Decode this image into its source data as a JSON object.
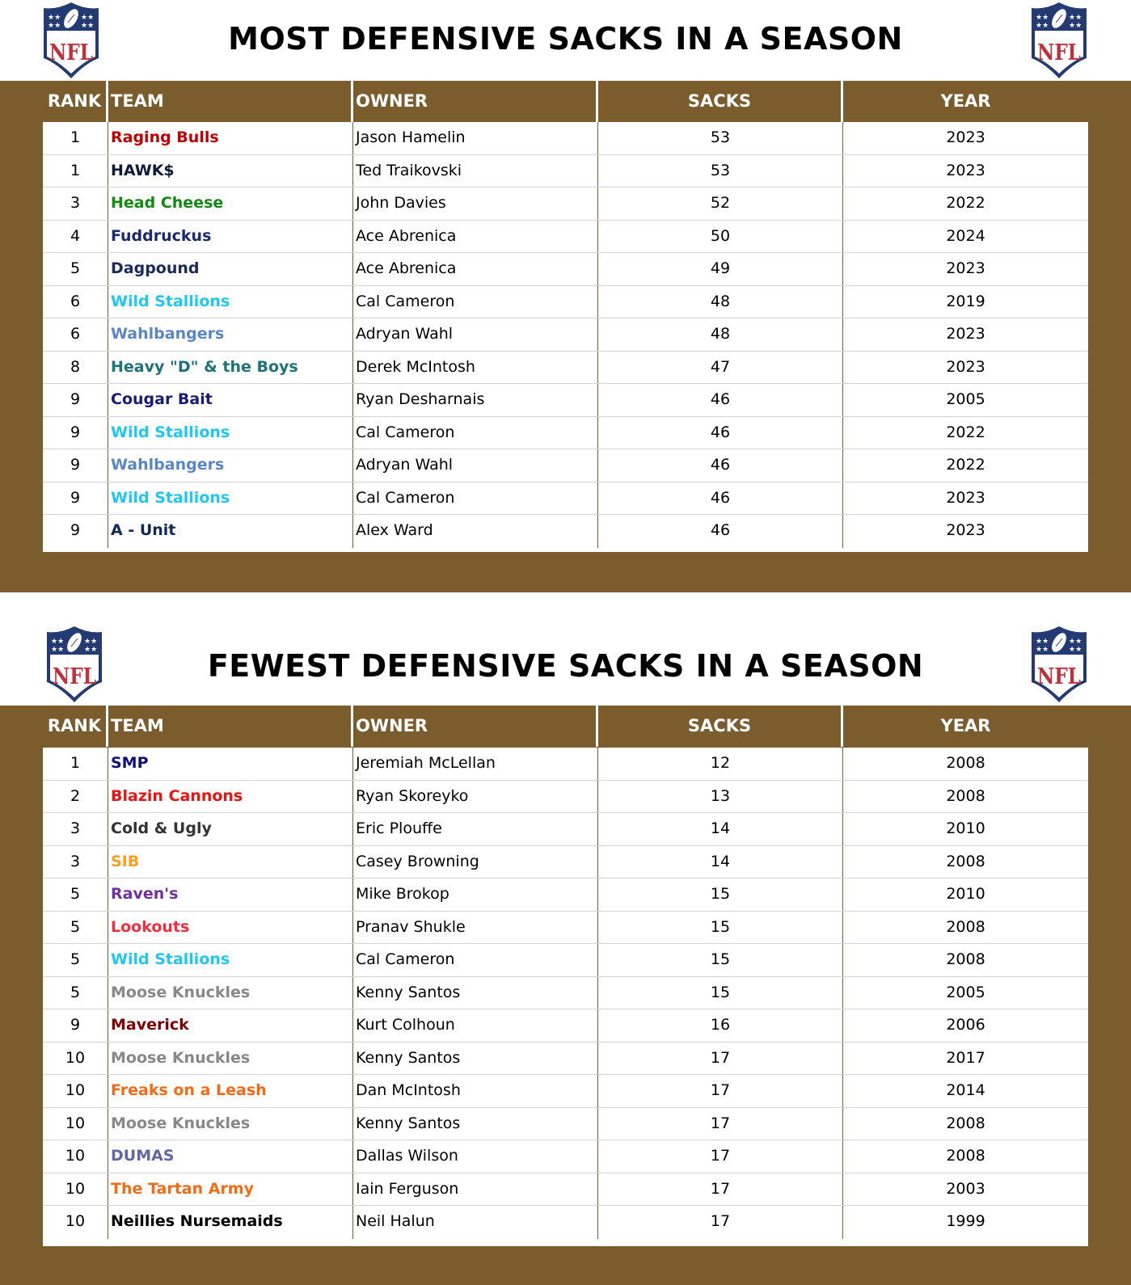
{
  "colors": {
    "band_brown": "#7b5c2d",
    "header_text": "#ffffff",
    "row_divider": "#d4d4d4"
  },
  "logo": {
    "icon": "nfl-shield-logo-icon",
    "text": "NFL"
  },
  "columns": [
    "RANK",
    "TEAM",
    "OWNER",
    "SACKS",
    "YEAR"
  ],
  "most": {
    "title": "MOST DEFENSIVE SACKS IN A SEASON",
    "rows": [
      {
        "rank": "1",
        "team": "Raging Bulls",
        "team_color": "#c00000",
        "owner": "Jason Hamelin",
        "sacks": "53",
        "year": "2023"
      },
      {
        "rank": "1",
        "team": "HAWK$",
        "team_color": "#0d1a3a",
        "owner": "Ted Traikovski",
        "sacks": "53",
        "year": "2023"
      },
      {
        "rank": "3",
        "team": "Head Cheese",
        "team_color": "#118a11",
        "owner": "John Davies",
        "sacks": "52",
        "year": "2022"
      },
      {
        "rank": "4",
        "team": "Fuddruckus",
        "team_color": "#1a2a6c",
        "owner": "Ace Abrenica",
        "sacks": "50",
        "year": "2024"
      },
      {
        "rank": "5",
        "team": "Dagpound",
        "team_color": "#1a2a5c",
        "owner": "Ace Abrenica",
        "sacks": "49",
        "year": "2023"
      },
      {
        "rank": "6",
        "team": "Wild Stallions",
        "team_color": "#1ec8f0",
        "owner": "Cal Cameron",
        "sacks": "48",
        "year": "2019"
      },
      {
        "rank": "6",
        "team": "Wahlbangers",
        "team_color": "#5b86c4",
        "owner": "Adryan Wahl",
        "sacks": "48",
        "year": "2023"
      },
      {
        "rank": "8",
        "team": "Heavy \"D\" & the Boys",
        "team_color": "#1e7378",
        "owner": "Derek McIntosh",
        "sacks": "47",
        "year": "2023"
      },
      {
        "rank": "9",
        "team": "Cougar Bait",
        "team_color": "#1a1a78",
        "owner": "Ryan Desharnais",
        "sacks": "46",
        "year": "2005"
      },
      {
        "rank": "9",
        "team": "Wild Stallions",
        "team_color": "#1ec8f0",
        "owner": "Cal Cameron",
        "sacks": "46",
        "year": "2022"
      },
      {
        "rank": "9",
        "team": "Wahlbangers",
        "team_color": "#5b86c4",
        "owner": "Adryan Wahl",
        "sacks": "46",
        "year": "2022"
      },
      {
        "rank": "9",
        "team": "Wild Stallions",
        "team_color": "#1ec8f0",
        "owner": "Cal Cameron",
        "sacks": "46",
        "year": "2023"
      },
      {
        "rank": "9",
        "team": "A - Unit",
        "team_color": "#0f2a5a",
        "owner": "Alex Ward",
        "sacks": "46",
        "year": "2023"
      }
    ]
  },
  "fewest": {
    "title": "FEWEST DEFENSIVE SACKS IN A SEASON",
    "rows": [
      {
        "rank": "1",
        "team": "SMP",
        "team_color": "#10107a",
        "owner": "Jeremiah McLellan",
        "sacks": "12",
        "year": "2008"
      },
      {
        "rank": "2",
        "team": "Blazin Cannons",
        "team_color": "#ee1111",
        "owner": "Ryan Skoreyko",
        "sacks": "13",
        "year": "2008"
      },
      {
        "rank": "3",
        "team": "Cold & Ugly",
        "team_color": "#333333",
        "owner": "Eric Plouffe",
        "sacks": "14",
        "year": "2010"
      },
      {
        "rank": "3",
        "team": "SIB",
        "team_color": "#f5a020",
        "owner": "Casey Browning",
        "sacks": "14",
        "year": "2008"
      },
      {
        "rank": "5",
        "team": "Raven's",
        "team_color": "#7030a0",
        "owner": "Mike Brokop",
        "sacks": "15",
        "year": "2010"
      },
      {
        "rank": "5",
        "team": "Lookouts",
        "team_color": "#f03040",
        "owner": "Pranav Shukle",
        "sacks": "15",
        "year": "2008"
      },
      {
        "rank": "5",
        "team": "Wild Stallions",
        "team_color": "#1ec8f0",
        "owner": "Cal Cameron",
        "sacks": "15",
        "year": "2008"
      },
      {
        "rank": "5",
        "team": "Moose Knuckles",
        "team_color": "#888888",
        "owner": "Kenny Santos",
        "sacks": "15",
        "year": "2005"
      },
      {
        "rank": "9",
        "team": "Maverick",
        "team_color": "#800000",
        "owner": "Kurt Colhoun",
        "sacks": "16",
        "year": "2006"
      },
      {
        "rank": "10",
        "team": "Moose Knuckles",
        "team_color": "#888888",
        "owner": "Kenny Santos",
        "sacks": "17",
        "year": "2017"
      },
      {
        "rank": "10",
        "team": "Freaks on a Leash",
        "team_color": "#f56a14",
        "owner": "Dan McIntosh",
        "sacks": "17",
        "year": "2014"
      },
      {
        "rank": "10",
        "team": "Moose Knuckles",
        "team_color": "#888888",
        "owner": "Kenny Santos",
        "sacks": "17",
        "year": "2008"
      },
      {
        "rank": "10",
        "team": "DUMAS",
        "team_color": "#6066a8",
        "owner": "Dallas Wilson",
        "sacks": "17",
        "year": "2008"
      },
      {
        "rank": "10",
        "team": "The Tartan Army",
        "team_color": "#f56a14",
        "owner": "Iain Ferguson",
        "sacks": "17",
        "year": "2003"
      },
      {
        "rank": "10",
        "team": "Neillies Nursemaids",
        "team_color": "#000000",
        "owner": "Neil Halun",
        "sacks": "17",
        "year": "1999"
      }
    ]
  }
}
